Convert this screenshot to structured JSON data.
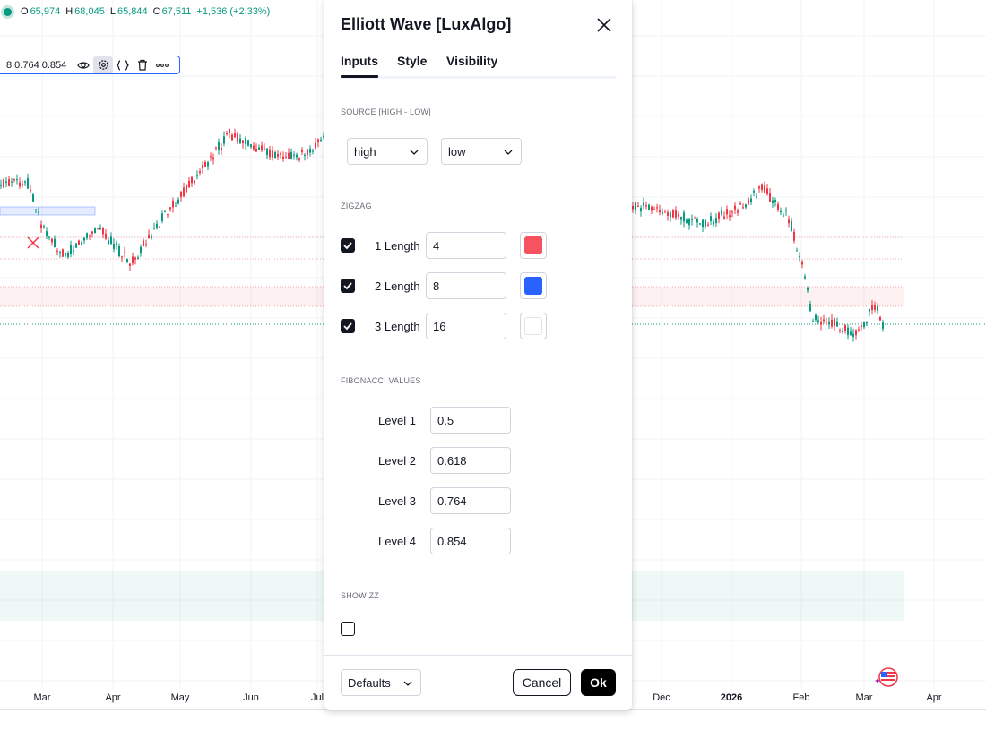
{
  "ohlc": {
    "open_label": "O",
    "open": "65,974",
    "high_label": "H",
    "high": "68,045",
    "low_label": "L",
    "low": "65,844",
    "close_label": "C",
    "close": "67,511",
    "change": "+1,536 (+2.33%)"
  },
  "indicator_legend": {
    "values_text": "8 0.764 0.854",
    "icons": [
      "eye-icon",
      "settings-icon",
      "source-code-icon",
      "delete-icon",
      "more-icon"
    ]
  },
  "time_axis": {
    "labels": [
      "Mar",
      "Apr",
      "May",
      "Jun",
      "Jul",
      "Dec",
      "2026",
      "Feb",
      "Mar",
      "Apr"
    ]
  },
  "dialog": {
    "title": "Elliott Wave [LuxAlgo]",
    "tabs": [
      "Inputs",
      "Style",
      "Visibility"
    ],
    "source_section": "SOURCE [HIGH - LOW]",
    "source_high": "high",
    "source_low": "low",
    "zigzag_section": "ZIGZAG",
    "zigzag": [
      {
        "label": "1 Length",
        "value": "4",
        "checked": true,
        "color": "#f7525f"
      },
      {
        "label": "2 Length",
        "value": "8",
        "checked": true,
        "color": "#2962ff"
      },
      {
        "label": "3 Length",
        "value": "16",
        "checked": true,
        "color": "#ffffff"
      }
    ],
    "fib_section": "FIBONACCI VALUES",
    "fib_levels": [
      {
        "label": "Level 1",
        "value": "0.5"
      },
      {
        "label": "Level 2",
        "value": "0.618"
      },
      {
        "label": "Level 3",
        "value": "0.764"
      },
      {
        "label": "Level 4",
        "value": "0.854"
      }
    ],
    "show_zz_section": "SHOW ZZ",
    "show_zz_checked": false,
    "defaults_label": "Defaults",
    "cancel_label": "Cancel",
    "ok_label": "Ok"
  },
  "colors": {
    "up": "#089981",
    "down": "#f23645",
    "accent": "#2962ff"
  }
}
